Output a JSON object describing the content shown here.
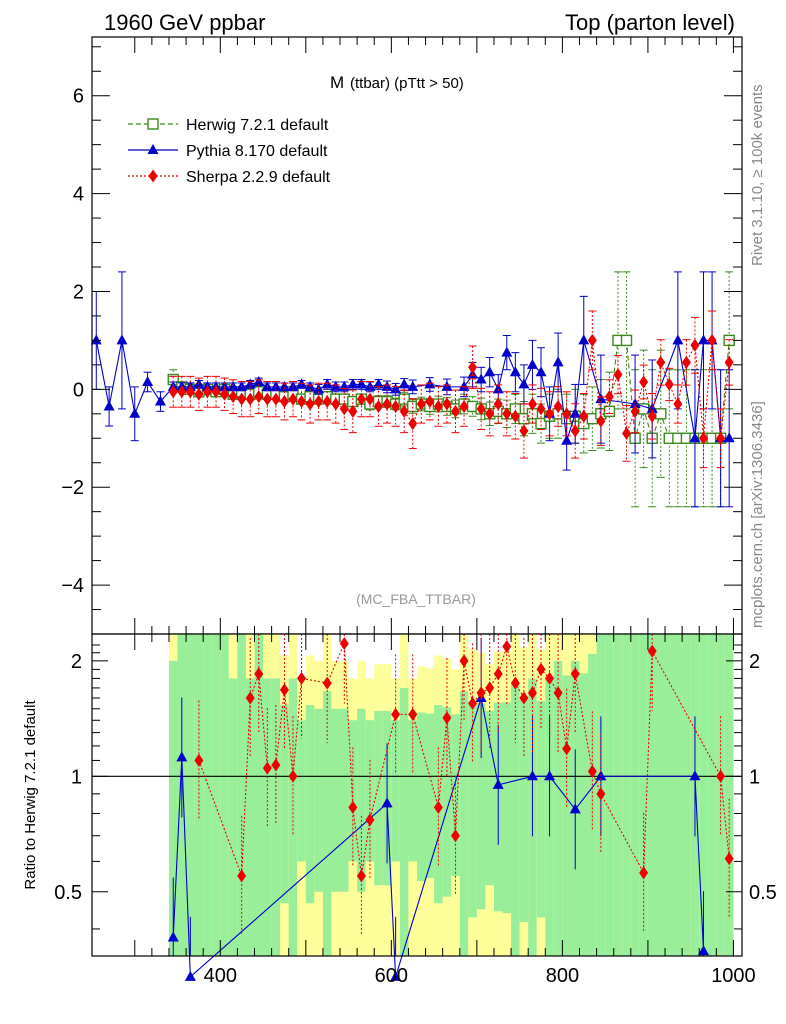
{
  "header": {
    "left": "1960 GeV ppbar",
    "right": "Top (parton level)"
  },
  "side_notes": {
    "rivet": "Rivet 3.1.10, ≥ 100k events",
    "mcplots": "mcplots.cern.ch [arXiv:1306.3436]"
  },
  "colors": {
    "herwig": "#3a8a1a",
    "pythia": "#0000cc",
    "sherpa": "#ee0000",
    "band_inner": "#99ee99",
    "band_outer": "#ffff99"
  },
  "chart_data": [
    {
      "type": "scatter",
      "title_main": "M",
      "title_sub": "(ttbar) (pTtt > 50)",
      "watermark": "(MC_FBA_TTBAR)",
      "xlabel": "",
      "ylabel": "",
      "xlim": [
        250,
        1010
      ],
      "ylim": [
        -5,
        7.2
      ],
      "yticks": [
        -4,
        -2,
        0,
        2,
        4,
        6
      ],
      "ytick_labels": [
        "−4",
        "−2",
        "0",
        "2",
        "4",
        "6"
      ],
      "legend_position": "top-left",
      "series": [
        {
          "name": "Herwig 7.2.1 default",
          "marker": "open-square",
          "line": "dashed",
          "x": [
            345,
            355,
            365,
            375,
            385,
            395,
            405,
            415,
            425,
            435,
            445,
            455,
            465,
            475,
            485,
            495,
            505,
            515,
            525,
            535,
            545,
            555,
            565,
            575,
            585,
            595,
            605,
            615,
            625,
            635,
            645,
            655,
            665,
            675,
            685,
            695,
            705,
            715,
            725,
            735,
            745,
            755,
            765,
            775,
            785,
            795,
            805,
            815,
            825,
            835,
            845,
            855,
            865,
            875,
            885,
            895,
            905,
            915,
            925,
            935,
            945,
            955,
            965,
            975,
            985,
            995
          ],
          "y": [
            0.2,
            0.05,
            0.0,
            -0.05,
            0.0,
            -0.05,
            0.0,
            -0.1,
            -0.05,
            -0.1,
            -0.05,
            -0.1,
            -0.1,
            -0.15,
            -0.1,
            -0.2,
            -0.15,
            -0.2,
            -0.15,
            -0.2,
            -0.2,
            -0.25,
            -0.2,
            -0.3,
            -0.25,
            -0.25,
            -0.3,
            -0.2,
            -0.35,
            -0.3,
            -0.35,
            -0.3,
            -0.35,
            -0.4,
            -0.3,
            -0.35,
            -0.4,
            -0.5,
            -0.45,
            -0.5,
            -0.4,
            -0.6,
            -0.5,
            -0.7,
            -0.55,
            -0.5,
            -0.6,
            -0.55,
            -0.7,
            -0.6,
            -0.5,
            -0.45,
            1.0,
            1.0,
            -1.0,
            -0.4,
            -1.0,
            -0.5,
            -1.0,
            -1.0,
            -1.0,
            -1.0,
            -1.0,
            -1.0,
            -1.0,
            1.0
          ],
          "err": [
            0.2,
            0.08,
            0.08,
            0.08,
            0.08,
            0.08,
            0.08,
            0.08,
            0.08,
            0.08,
            0.08,
            0.08,
            0.08,
            0.08,
            0.08,
            0.08,
            0.08,
            0.1,
            0.1,
            0.1,
            0.1,
            0.1,
            0.1,
            0.12,
            0.12,
            0.12,
            0.12,
            0.14,
            0.14,
            0.14,
            0.16,
            0.16,
            0.18,
            0.18,
            0.2,
            0.2,
            0.22,
            0.24,
            0.25,
            0.28,
            0.3,
            0.35,
            0.4,
            0.4,
            0.45,
            0.5,
            0.5,
            0.55,
            0.6,
            0.65,
            0.7,
            0.8,
            1.4,
            1.4,
            1.4,
            1.2,
            1.4,
            1.3,
            1.4,
            1.4,
            1.4,
            1.4,
            1.4,
            1.4,
            1.4,
            1.4
          ]
        },
        {
          "name": "Pythia 8.170 default",
          "marker": "filled-triangle",
          "line": "solid",
          "x": [
            255,
            270,
            285,
            300,
            315,
            330,
            345,
            355,
            365,
            375,
            385,
            395,
            405,
            415,
            425,
            435,
            445,
            455,
            465,
            475,
            485,
            495,
            505,
            515,
            525,
            535,
            545,
            555,
            565,
            575,
            585,
            595,
            605,
            615,
            625,
            645,
            665,
            685,
            695,
            705,
            715,
            725,
            735,
            745,
            755,
            765,
            775,
            785,
            795,
            805,
            815,
            825,
            845,
            885,
            905,
            935,
            955,
            965,
            975,
            985,
            995
          ],
          "y": [
            1.0,
            -0.35,
            1.0,
            -0.5,
            0.15,
            -0.25,
            0.05,
            0.05,
            0.05,
            0.1,
            0.05,
            0.05,
            0.05,
            0.05,
            0.05,
            0.1,
            0.15,
            0.05,
            0.05,
            0.05,
            0.05,
            0.1,
            0.05,
            0.0,
            0.1,
            0.05,
            0.05,
            0.1,
            0.1,
            0.05,
            0.1,
            0.05,
            0.0,
            0.1,
            0.05,
            0.1,
            0.05,
            0.05,
            0.3,
            0.2,
            0.35,
            0.0,
            0.75,
            0.35,
            0.1,
            0.5,
            0.35,
            -0.5,
            0.55,
            -1.05,
            -0.5,
            1.0,
            -0.2,
            -0.3,
            -0.4,
            1.0,
            -1.0,
            1.0,
            1.0,
            -1.0,
            -1.0
          ],
          "err": [
            1.0,
            0.4,
            1.4,
            0.55,
            0.2,
            0.2,
            0.1,
            0.08,
            0.08,
            0.08,
            0.08,
            0.08,
            0.08,
            0.08,
            0.08,
            0.08,
            0.08,
            0.08,
            0.08,
            0.08,
            0.08,
            0.08,
            0.08,
            0.1,
            0.1,
            0.1,
            0.1,
            0.1,
            0.1,
            0.1,
            0.1,
            0.12,
            0.12,
            0.12,
            0.14,
            0.14,
            0.16,
            0.2,
            0.25,
            0.25,
            0.3,
            0.3,
            0.35,
            0.4,
            0.4,
            0.5,
            0.5,
            0.55,
            0.6,
            0.6,
            0.6,
            0.9,
            0.9,
            1.0,
            1.0,
            1.4,
            1.4,
            1.4,
            1.4,
            1.4,
            1.4
          ]
        },
        {
          "name": "Sherpa 2.2.9 default",
          "marker": "filled-diamond",
          "line": "dotted",
          "x": [
            345,
            355,
            365,
            375,
            385,
            395,
            405,
            415,
            425,
            435,
            445,
            455,
            465,
            475,
            485,
            495,
            505,
            515,
            525,
            535,
            545,
            555,
            565,
            575,
            585,
            595,
            605,
            615,
            625,
            635,
            645,
            655,
            665,
            675,
            685,
            695,
            705,
            715,
            725,
            735,
            745,
            755,
            765,
            775,
            785,
            795,
            805,
            815,
            825,
            835,
            845,
            855,
            865,
            875,
            885,
            895,
            905,
            915,
            925,
            935,
            945,
            955,
            965,
            975,
            985,
            995
          ],
          "y": [
            -0.05,
            -0.05,
            -0.05,
            -0.1,
            -0.05,
            -0.05,
            -0.1,
            -0.15,
            -0.2,
            -0.2,
            -0.15,
            -0.2,
            -0.2,
            -0.25,
            -0.2,
            -0.25,
            -0.3,
            -0.25,
            -0.25,
            -0.3,
            -0.4,
            -0.45,
            -0.2,
            -0.2,
            -0.35,
            -0.3,
            -0.35,
            -0.45,
            -0.7,
            -0.3,
            -0.25,
            -0.35,
            -0.3,
            -0.45,
            -0.35,
            0.45,
            -0.4,
            -0.5,
            -0.3,
            -0.5,
            -0.55,
            -0.85,
            -0.3,
            -0.4,
            -0.5,
            -0.35,
            -0.5,
            -0.85,
            -0.55,
            1.0,
            -0.65,
            -0.15,
            0.3,
            -0.9,
            -0.45,
            0.15,
            -0.55,
            0.55,
            0.1,
            -0.3,
            0.55,
            0.9,
            -1.0,
            1.0,
            -1.0,
            0.55
          ]
        }
      ]
    },
    {
      "type": "scatter",
      "ylabel": "Ratio to Herwig 7.2.1 default",
      "xlim": [
        250,
        1010
      ],
      "ylim": [
        0.34,
        2.35
      ],
      "xticks": [
        400,
        600,
        800,
        1000
      ],
      "xtick_labels": [
        "400",
        "600",
        "800",
        "1000"
      ],
      "yticks": [
        0.5,
        1,
        2
      ],
      "ytick_labels": [
        "0.5",
        "1",
        "2"
      ],
      "reference": 1.0,
      "series": [
        {
          "name": "Pythia 8.170 default",
          "x": [
            345,
            355,
            365,
            595,
            605,
            705,
            725,
            765,
            785,
            815,
            845,
            955,
            965
          ],
          "y": [
            0.38,
            1.12,
            0.3,
            0.85,
            0.3,
            1.6,
            0.95,
            1.0,
            1.0,
            0.82,
            1.0,
            1.0,
            0.35
          ]
        },
        {
          "name": "Sherpa 2.2.9 default",
          "x": [
            375,
            425,
            435,
            445,
            455,
            465,
            475,
            485,
            495,
            525,
            545,
            555,
            565,
            575,
            605,
            625,
            655,
            665,
            675,
            685,
            695,
            705,
            715,
            725,
            735,
            745,
            755,
            765,
            775,
            785,
            795,
            805,
            815,
            835,
            845,
            895,
            905,
            985,
            995
          ],
          "y": [
            1.1,
            0.55,
            1.6,
            1.85,
            1.05,
            1.07,
            1.68,
            1.0,
            1.8,
            1.75,
            2.22,
            0.83,
            0.55,
            0.77,
            1.45,
            1.45,
            0.83,
            1.42,
            0.7,
            2.0,
            1.55,
            1.65,
            1.7,
            1.85,
            2.18,
            1.75,
            1.6,
            1.65,
            1.9,
            1.8,
            1.65,
            1.18,
            1.85,
            1.03,
            0.9,
            0.56,
            2.12,
            1.0,
            0.61
          ]
        }
      ]
    }
  ]
}
